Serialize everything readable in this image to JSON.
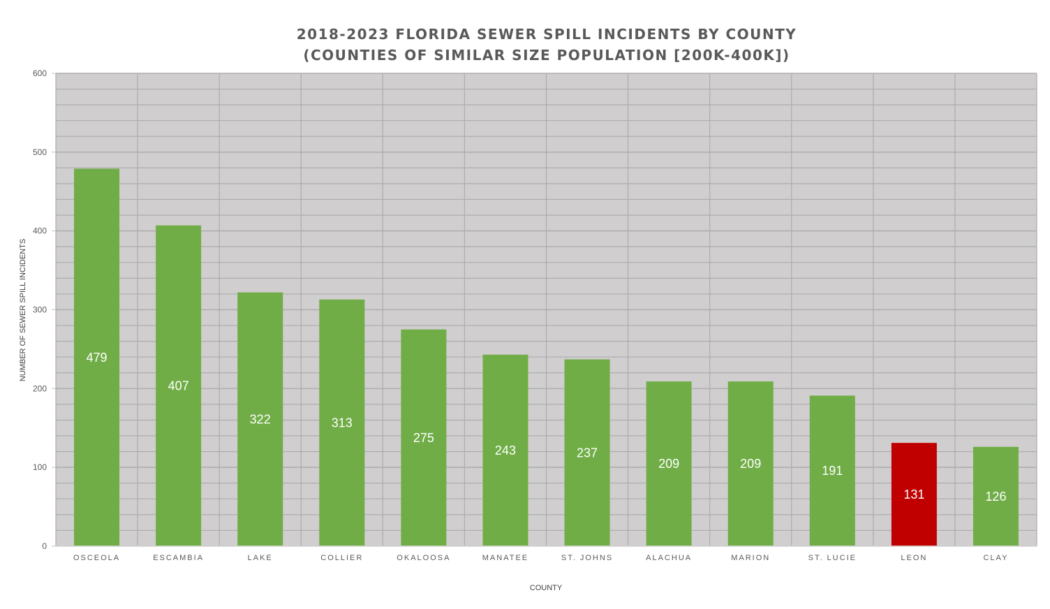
{
  "chart_data": {
    "type": "bar",
    "title_line1": "2018-2023 FLORIDA SEWER SPILL INCIDENTS BY COUNTY",
    "title_line2": "(COUNTIES OF SIMILAR SIZE POPULATION [200K-400K])",
    "xlabel": "COUNTY",
    "ylabel": "NUMBER OF SEWER SPILL INCIDENTS",
    "ylim": [
      0,
      600
    ],
    "yticks": [
      0,
      100,
      200,
      300,
      400,
      500,
      600
    ],
    "minor_grid_step": 20,
    "grid": true,
    "categories": [
      "OSCEOLA",
      "ESCAMBIA",
      "LAKE",
      "COLLIER",
      "OKALOOSA",
      "MANATEE",
      "ST. JOHNS",
      "ALACHUA",
      "MARION",
      "ST. LUCIE",
      "LEON",
      "CLAY"
    ],
    "values": [
      479,
      407,
      322,
      313,
      275,
      243,
      237,
      209,
      209,
      191,
      131,
      126
    ],
    "colors": {
      "bar": "#70AD47",
      "highlight": "#C00000",
      "highlight_category": "LEON",
      "plot_background": "#D0CECE",
      "grid": "#ADADAD"
    }
  }
}
